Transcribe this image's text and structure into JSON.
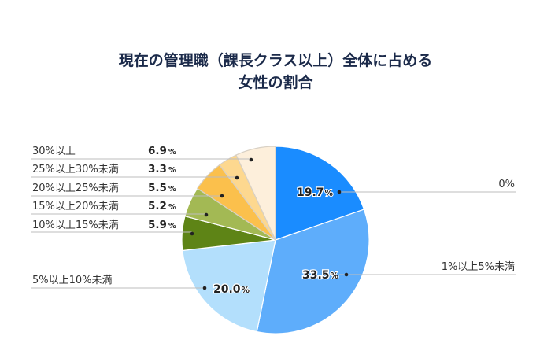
{
  "title": {
    "line1": "現在の管理職（課長クラス以上）全体に占める",
    "line2": "女性の割合"
  },
  "chart_data": {
    "type": "pie",
    "title": "現在の管理職（課長クラス以上）全体に占める女性の割合",
    "start_angle": "12 o'clock, clockwise",
    "categories": [
      "0%",
      "1%以上5%未満",
      "5%以上10%未満",
      "10%以上15%未満",
      "15%以上20%未満",
      "20%以上25%未満",
      "25%以上30%未満",
      "30%以上"
    ],
    "values": [
      19.7,
      33.5,
      20.0,
      5.9,
      5.2,
      5.5,
      3.3,
      6.9
    ],
    "colors": [
      "#1a8cff",
      "#5eadfb",
      "#b3dffc",
      "#5e8416",
      "#a3b954",
      "#fbc04c",
      "#fdd88f",
      "#fdefdb"
    ],
    "unit": "%"
  },
  "labels": {
    "s0": {
      "name": "0%",
      "value": "19.7",
      "unit": "%"
    },
    "s1": {
      "name": "1%以上5%未満",
      "value": "33.5",
      "unit": "%"
    },
    "s2": {
      "name": "5%以上10%未満",
      "value": "20.0",
      "unit": "%"
    },
    "s3": {
      "name": "10%以上15%未満",
      "value": "5.9",
      "unit": "%"
    },
    "s4": {
      "name": "15%以上20%未満",
      "value": "5.2",
      "unit": "%"
    },
    "s5": {
      "name": "20%以上25%未満",
      "value": "5.5",
      "unit": "%"
    },
    "s6": {
      "name": "25%以上30%未満",
      "value": "3.3",
      "unit": "%"
    },
    "s7": {
      "name": "30%以上",
      "value": "6.9",
      "unit": "%"
    }
  }
}
